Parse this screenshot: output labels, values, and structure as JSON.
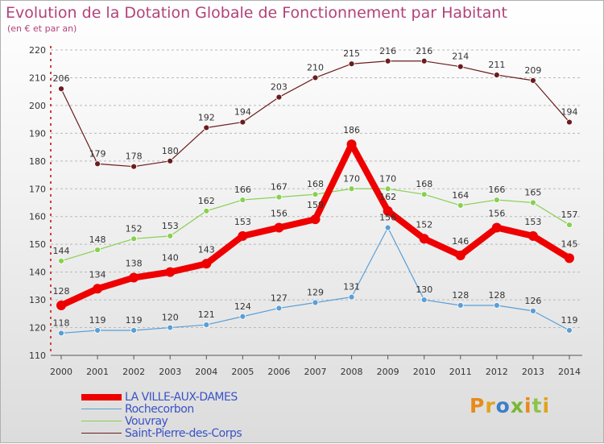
{
  "header": {
    "title": "Evolution de la Dotation Globale de Fonctionnement par Habitant",
    "subtitle": "(en € et par an)"
  },
  "logo": {
    "text": "Proxiti",
    "colors": [
      "#e88a1a",
      "#e2a31c",
      "#3a7fc8",
      "#7ab634",
      "#e88a1a",
      "#8cc44c",
      "#e2a31c"
    ]
  },
  "chart_data": {
    "type": "line",
    "title": "Evolution de la Dotation Globale de Fonctionnement par Habitant",
    "subtitle": "(en € et par an)",
    "xlabel": "",
    "ylabel": "",
    "x": [
      "2000",
      "2001",
      "2002",
      "2003",
      "2004",
      "2005",
      "2006",
      "2007",
      "2008",
      "2009",
      "2010",
      "2011",
      "2012",
      "2013",
      "2014"
    ],
    "ylim": [
      110,
      220
    ],
    "yticks": [
      110,
      120,
      130,
      140,
      150,
      160,
      170,
      180,
      190,
      200,
      210,
      220
    ],
    "grid": "horizontal dashed",
    "legend_position": "bottom-left",
    "series": [
      {
        "name": "Saint-Pierre-des-Corps",
        "color": "#6b1c1c",
        "width": 1.2,
        "labels": "above",
        "values": [
          206,
          179,
          178,
          180,
          192,
          194,
          203,
          210,
          215,
          216,
          216,
          214,
          211,
          209,
          194
        ]
      },
      {
        "name": "Vouvray",
        "color": "#88d050",
        "width": 1.2,
        "labels": "above",
        "values": [
          144,
          148,
          152,
          153,
          162,
          166,
          167,
          168,
          170,
          170,
          168,
          164,
          166,
          165,
          157
        ]
      },
      {
        "name": "Rochecorbon",
        "color": "#5a9ed6",
        "width": 1.2,
        "labels": "above",
        "values": [
          118,
          119,
          119,
          120,
          121,
          124,
          127,
          129,
          131,
          156,
          130,
          128,
          128,
          126,
          119
        ]
      },
      {
        "name": "LA VILLE-AUX-DAMES",
        "color": "#ee0000",
        "width": 8,
        "labels": "above",
        "values": [
          128,
          134,
          138,
          140,
          143,
          153,
          156,
          159,
          186,
          162,
          152,
          146,
          156,
          153,
          145
        ]
      }
    ]
  }
}
